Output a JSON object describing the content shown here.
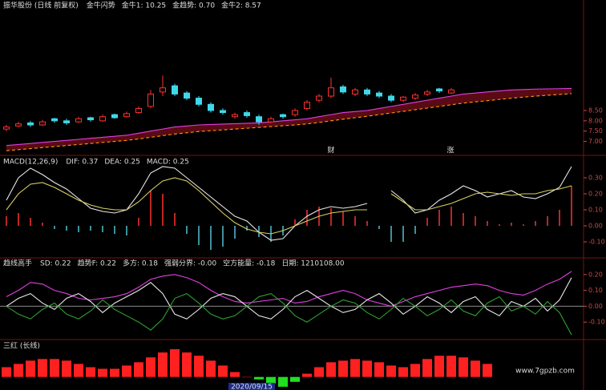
{
  "chart_data": [
    {
      "type": "candlestick",
      "title": "振华股份 (日线 前复权)",
      "indicator": "金牛闪势",
      "readouts": [
        {
          "text": "金牛1: 10.25",
          "color": "#e0e0e0"
        },
        {
          "text": "金趋势: 0.70",
          "color": "#ff40ff"
        },
        {
          "text": "金牛2: 8.57",
          "color": "#ffff40"
        }
      ],
      "annotations": [
        "财",
        "涨"
      ],
      "up_color": "#ff3030",
      "down_color": "#40d8e8",
      "open": [
        7.6,
        7.75,
        7.9,
        7.8,
        8.1,
        8.0,
        7.95,
        8.15,
        8.0,
        8.3,
        8.2,
        8.4,
        8.7,
        9.4,
        9.7,
        9.35,
        9.1,
        8.8,
        8.5,
        8.2,
        8.4,
        8.2,
        7.95,
        8.3,
        8.3,
        8.6,
        9.0,
        9.2,
        9.65,
        9.3,
        9.5,
        9.35,
        9.2,
        9.0,
        9.1,
        9.3,
        9.55,
        9.35,
        null,
        null,
        null,
        null,
        null,
        null,
        null,
        null,
        null,
        null
      ],
      "high": [
        7.8,
        7.95,
        8.0,
        8.05,
        8.15,
        8.1,
        8.2,
        8.2,
        8.3,
        8.35,
        8.45,
        8.7,
        9.5,
        10.2,
        9.8,
        9.45,
        9.2,
        8.9,
        8.6,
        8.4,
        8.5,
        8.3,
        8.2,
        8.35,
        8.6,
        9.0,
        9.3,
        10.1,
        9.75,
        9.6,
        9.6,
        9.45,
        9.3,
        9.2,
        9.35,
        9.5,
        9.6,
        9.6,
        null,
        null,
        null,
        null,
        null,
        null,
        null,
        null,
        null,
        null
      ],
      "low": [
        7.5,
        7.7,
        7.7,
        7.75,
        7.9,
        7.8,
        7.9,
        7.95,
        7.95,
        8.1,
        8.15,
        8.35,
        8.6,
        9.2,
        9.2,
        9.0,
        8.7,
        8.4,
        8.3,
        8.1,
        8.15,
        7.8,
        7.9,
        8.1,
        8.2,
        8.5,
        8.9,
        9.1,
        9.3,
        9.2,
        9.2,
        9.1,
        8.9,
        8.9,
        9.0,
        9.2,
        9.35,
        9.3,
        null,
        null,
        null,
        null,
        null,
        null,
        null,
        null,
        null,
        null
      ],
      "close": [
        7.7,
        7.85,
        7.8,
        7.95,
        8.0,
        7.9,
        8.1,
        8.05,
        8.2,
        8.15,
        8.35,
        8.6,
        9.3,
        9.6,
        9.3,
        9.1,
        8.8,
        8.5,
        8.4,
        8.3,
        8.25,
        7.95,
        8.1,
        8.2,
        8.5,
        8.9,
        9.2,
        9.6,
        9.4,
        9.5,
        9.3,
        9.2,
        9.0,
        9.15,
        9.25,
        9.4,
        9.45,
        9.5,
        null,
        null,
        null,
        null,
        null,
        null,
        null,
        null,
        null,
        null
      ],
      "series": [
        {
          "color": "#e040e0",
          "values": [
            6.8,
            6.85,
            6.9,
            6.95,
            7.0,
            7.05,
            7.1,
            7.15,
            7.2,
            7.25,
            7.3,
            7.4,
            7.5,
            7.6,
            7.7,
            7.75,
            7.8,
            7.82,
            7.84,
            7.86,
            7.88,
            7.9,
            7.95,
            8.0,
            8.05,
            8.1,
            8.2,
            8.3,
            8.4,
            8.45,
            8.5,
            8.6,
            8.7,
            8.8,
            8.9,
            9.0,
            9.1,
            9.2,
            9.3,
            9.35,
            9.4,
            9.45,
            9.5,
            9.52,
            9.54,
            9.55,
            9.56,
            9.57
          ]
        },
        {
          "color": "#ff9900",
          "dashed": true,
          "values": [
            6.55,
            6.6,
            6.65,
            6.7,
            6.75,
            6.8,
            6.85,
            6.9,
            6.95,
            7.0,
            7.05,
            7.12,
            7.2,
            7.28,
            7.36,
            7.42,
            7.48,
            7.52,
            7.56,
            7.6,
            7.64,
            7.68,
            7.72,
            7.76,
            7.8,
            7.85,
            7.92,
            8.0,
            8.08,
            8.15,
            8.22,
            8.3,
            8.38,
            8.46,
            8.54,
            8.62,
            8.7,
            8.78,
            8.86,
            8.92,
            8.98,
            9.04,
            9.1,
            9.15,
            9.2,
            9.24,
            9.28,
            9.32
          ]
        }
      ],
      "band_color": "#5a0a14",
      "ylim": [
        6.4,
        13.4
      ],
      "yticks": [
        {
          "value": 7.0,
          "label": "7.00"
        },
        {
          "value": 7.5,
          "label": "7.50"
        },
        {
          "value": 8.0,
          "label": "8.00"
        },
        {
          "value": 8.5,
          "label": "8.50"
        }
      ]
    },
    {
      "type": "macd",
      "title": "MACD(12,26,9)",
      "readouts": [
        {
          "text": "DIF: 0.37",
          "color": "#e0e0e0"
        },
        {
          "text": "DEA: 0.25",
          "color": "#ffff40"
        },
        {
          "text": "MACD: 0.25",
          "color": "#ff40ff"
        }
      ],
      "up_color": "#ff3030",
      "down_color": "#54c0d0",
      "histogram": [
        0.06,
        0.08,
        0.05,
        0.02,
        -0.02,
        -0.03,
        -0.04,
        -0.03,
        -0.04,
        -0.05,
        -0.06,
        0.05,
        0.22,
        0.2,
        0.08,
        -0.05,
        -0.12,
        -0.15,
        -0.13,
        -0.08,
        -0.03,
        -0.07,
        -0.1,
        -0.06,
        0.04,
        0.1,
        0.12,
        0.11,
        0.09,
        0.06,
        0.03,
        -0.02,
        -0.1,
        -0.1,
        -0.05,
        0.05,
        0.1,
        0.12,
        0.08,
        0.06,
        0.03,
        0.01,
        0.02,
        0.01,
        0.03,
        0.06,
        0.1,
        0.25
      ],
      "series": [
        {
          "color": "#e8e8e8",
          "values": [
            0.16,
            0.3,
            0.36,
            0.32,
            0.27,
            0.23,
            0.17,
            0.11,
            0.09,
            0.08,
            0.1,
            0.2,
            0.33,
            0.37,
            0.36,
            0.3,
            0.24,
            0.18,
            0.12,
            0.06,
            0.03,
            -0.04,
            -0.09,
            -0.08,
            0.0,
            0.06,
            0.1,
            0.12,
            0.11,
            0.12,
            0.14,
            null,
            0.22,
            0.16,
            0.08,
            0.1,
            0.16,
            0.2,
            0.25,
            0.22,
            0.18,
            0.2,
            0.22,
            0.18,
            0.17,
            0.2,
            0.24,
            0.37
          ]
        },
        {
          "color": "#d8d060",
          "values": [
            0.1,
            0.2,
            0.26,
            0.27,
            0.24,
            0.2,
            0.16,
            0.13,
            0.11,
            0.1,
            0.1,
            0.15,
            0.22,
            0.28,
            0.3,
            0.28,
            0.22,
            0.15,
            0.08,
            0.02,
            -0.02,
            -0.04,
            -0.05,
            -0.03,
            0.0,
            0.03,
            0.06,
            0.08,
            0.09,
            0.1,
            0.1,
            null,
            0.2,
            0.15,
            0.1,
            0.1,
            0.12,
            0.14,
            0.17,
            0.2,
            0.21,
            0.2,
            0.19,
            0.2,
            0.2,
            0.22,
            0.23,
            0.25
          ]
        }
      ],
      "ylim": [
        -0.2,
        0.43
      ],
      "yticks": [
        {
          "value": -0.1,
          "label": "-0.10"
        },
        {
          "value": 0,
          "label": "0.00"
        },
        {
          "value": 0.1,
          "label": "0.10"
        },
        {
          "value": 0.2,
          "label": "0.20"
        },
        {
          "value": 0.3,
          "label": "0.30"
        }
      ]
    },
    {
      "type": "line",
      "title": "趋线高手",
      "readouts": [
        {
          "text": "SD: 0.22",
          "color": "#e0e0e0"
        },
        {
          "text": "趋势F: 0.22",
          "color": "#ff40ff"
        },
        {
          "text": "多方: 0.18",
          "color": "#e0e0e0"
        },
        {
          "text": "强弱分界: -0.00",
          "color": "#c0c0c0"
        },
        {
          "text": "空方能量: -0.18",
          "color": "#40e040"
        },
        {
          "text": "日期: 1210108.00",
          "color": "#e0e0e0"
        }
      ],
      "series": [
        {
          "color": "#e040e0",
          "values": [
            0.06,
            0.1,
            0.15,
            0.14,
            0.1,
            0.08,
            0.05,
            0.04,
            0.05,
            0.06,
            0.08,
            0.12,
            0.17,
            0.19,
            0.2,
            0.18,
            0.15,
            0.1,
            0.06,
            0.03,
            0.02,
            0.03,
            0.04,
            0.05,
            0.02,
            0.03,
            0.06,
            0.08,
            0.1,
            0.08,
            0.04,
            0.02,
            0.0,
            0.03,
            0.06,
            0.08,
            0.1,
            0.12,
            0.13,
            0.14,
            0.13,
            0.1,
            0.08,
            0.07,
            0.1,
            0.14,
            0.17,
            0.22
          ]
        },
        {
          "color": "#e8e8e8",
          "values": [
            0.0,
            0.05,
            0.08,
            0.02,
            -0.02,
            0.05,
            0.08,
            0.03,
            -0.04,
            0.02,
            0.06,
            0.1,
            0.15,
            0.08,
            -0.05,
            -0.08,
            -0.02,
            0.05,
            0.08,
            0.06,
            0.0,
            -0.06,
            -0.08,
            -0.02,
            0.06,
            0.1,
            0.05,
            0.0,
            -0.04,
            -0.02,
            0.04,
            0.08,
            0.02,
            -0.05,
            0.0,
            0.06,
            0.02,
            -0.04,
            0.03,
            0.06,
            -0.02,
            -0.06,
            0.03,
            0.0,
            0.05,
            -0.03,
            0.04,
            0.18
          ]
        },
        {
          "color": "#30a030",
          "values": [
            0.0,
            -0.05,
            -0.08,
            -0.02,
            0.02,
            -0.05,
            -0.08,
            -0.03,
            0.04,
            -0.02,
            -0.06,
            -0.1,
            -0.15,
            -0.08,
            0.05,
            0.08,
            0.02,
            -0.05,
            -0.08,
            -0.06,
            0.0,
            0.06,
            0.08,
            0.02,
            -0.06,
            -0.1,
            -0.05,
            0.0,
            0.04,
            0.02,
            -0.04,
            -0.08,
            -0.02,
            0.05,
            0.0,
            -0.06,
            -0.02,
            0.04,
            -0.03,
            -0.06,
            0.02,
            0.06,
            -0.03,
            0.0,
            -0.05,
            0.03,
            -0.04,
            -0.18
          ]
        }
      ],
      "reference_line": {
        "value": 0,
        "color": "#8a8a8a"
      },
      "ylim": [
        -0.21,
        0.29
      ],
      "yticks": [
        {
          "value": -0.1,
          "label": "-0.10"
        },
        {
          "value": 0,
          "label": "0.00"
        },
        {
          "value": 0.1,
          "label": "0.10"
        },
        {
          "value": 0.2,
          "label": "0.20"
        }
      ]
    },
    {
      "type": "histogram_bars",
      "title": "三红 (长线)",
      "up_color": "#ff2020",
      "down_color": "#20e020",
      "values": [
        12,
        16,
        20,
        22,
        22,
        20,
        16,
        12,
        10,
        10,
        14,
        18,
        24,
        30,
        34,
        30,
        26,
        20,
        14,
        6,
        0,
        -3,
        -8,
        -12,
        -6,
        4,
        12,
        18,
        20,
        22,
        20,
        18,
        14,
        12,
        16,
        22,
        26,
        26,
        24,
        20,
        16,
        null,
        null,
        null,
        null,
        null,
        null,
        null
      ],
      "ylim": [
        -16,
        38
      ],
      "x_label": "2020/09/15",
      "watermark": "www.7gpzb.com"
    }
  ]
}
